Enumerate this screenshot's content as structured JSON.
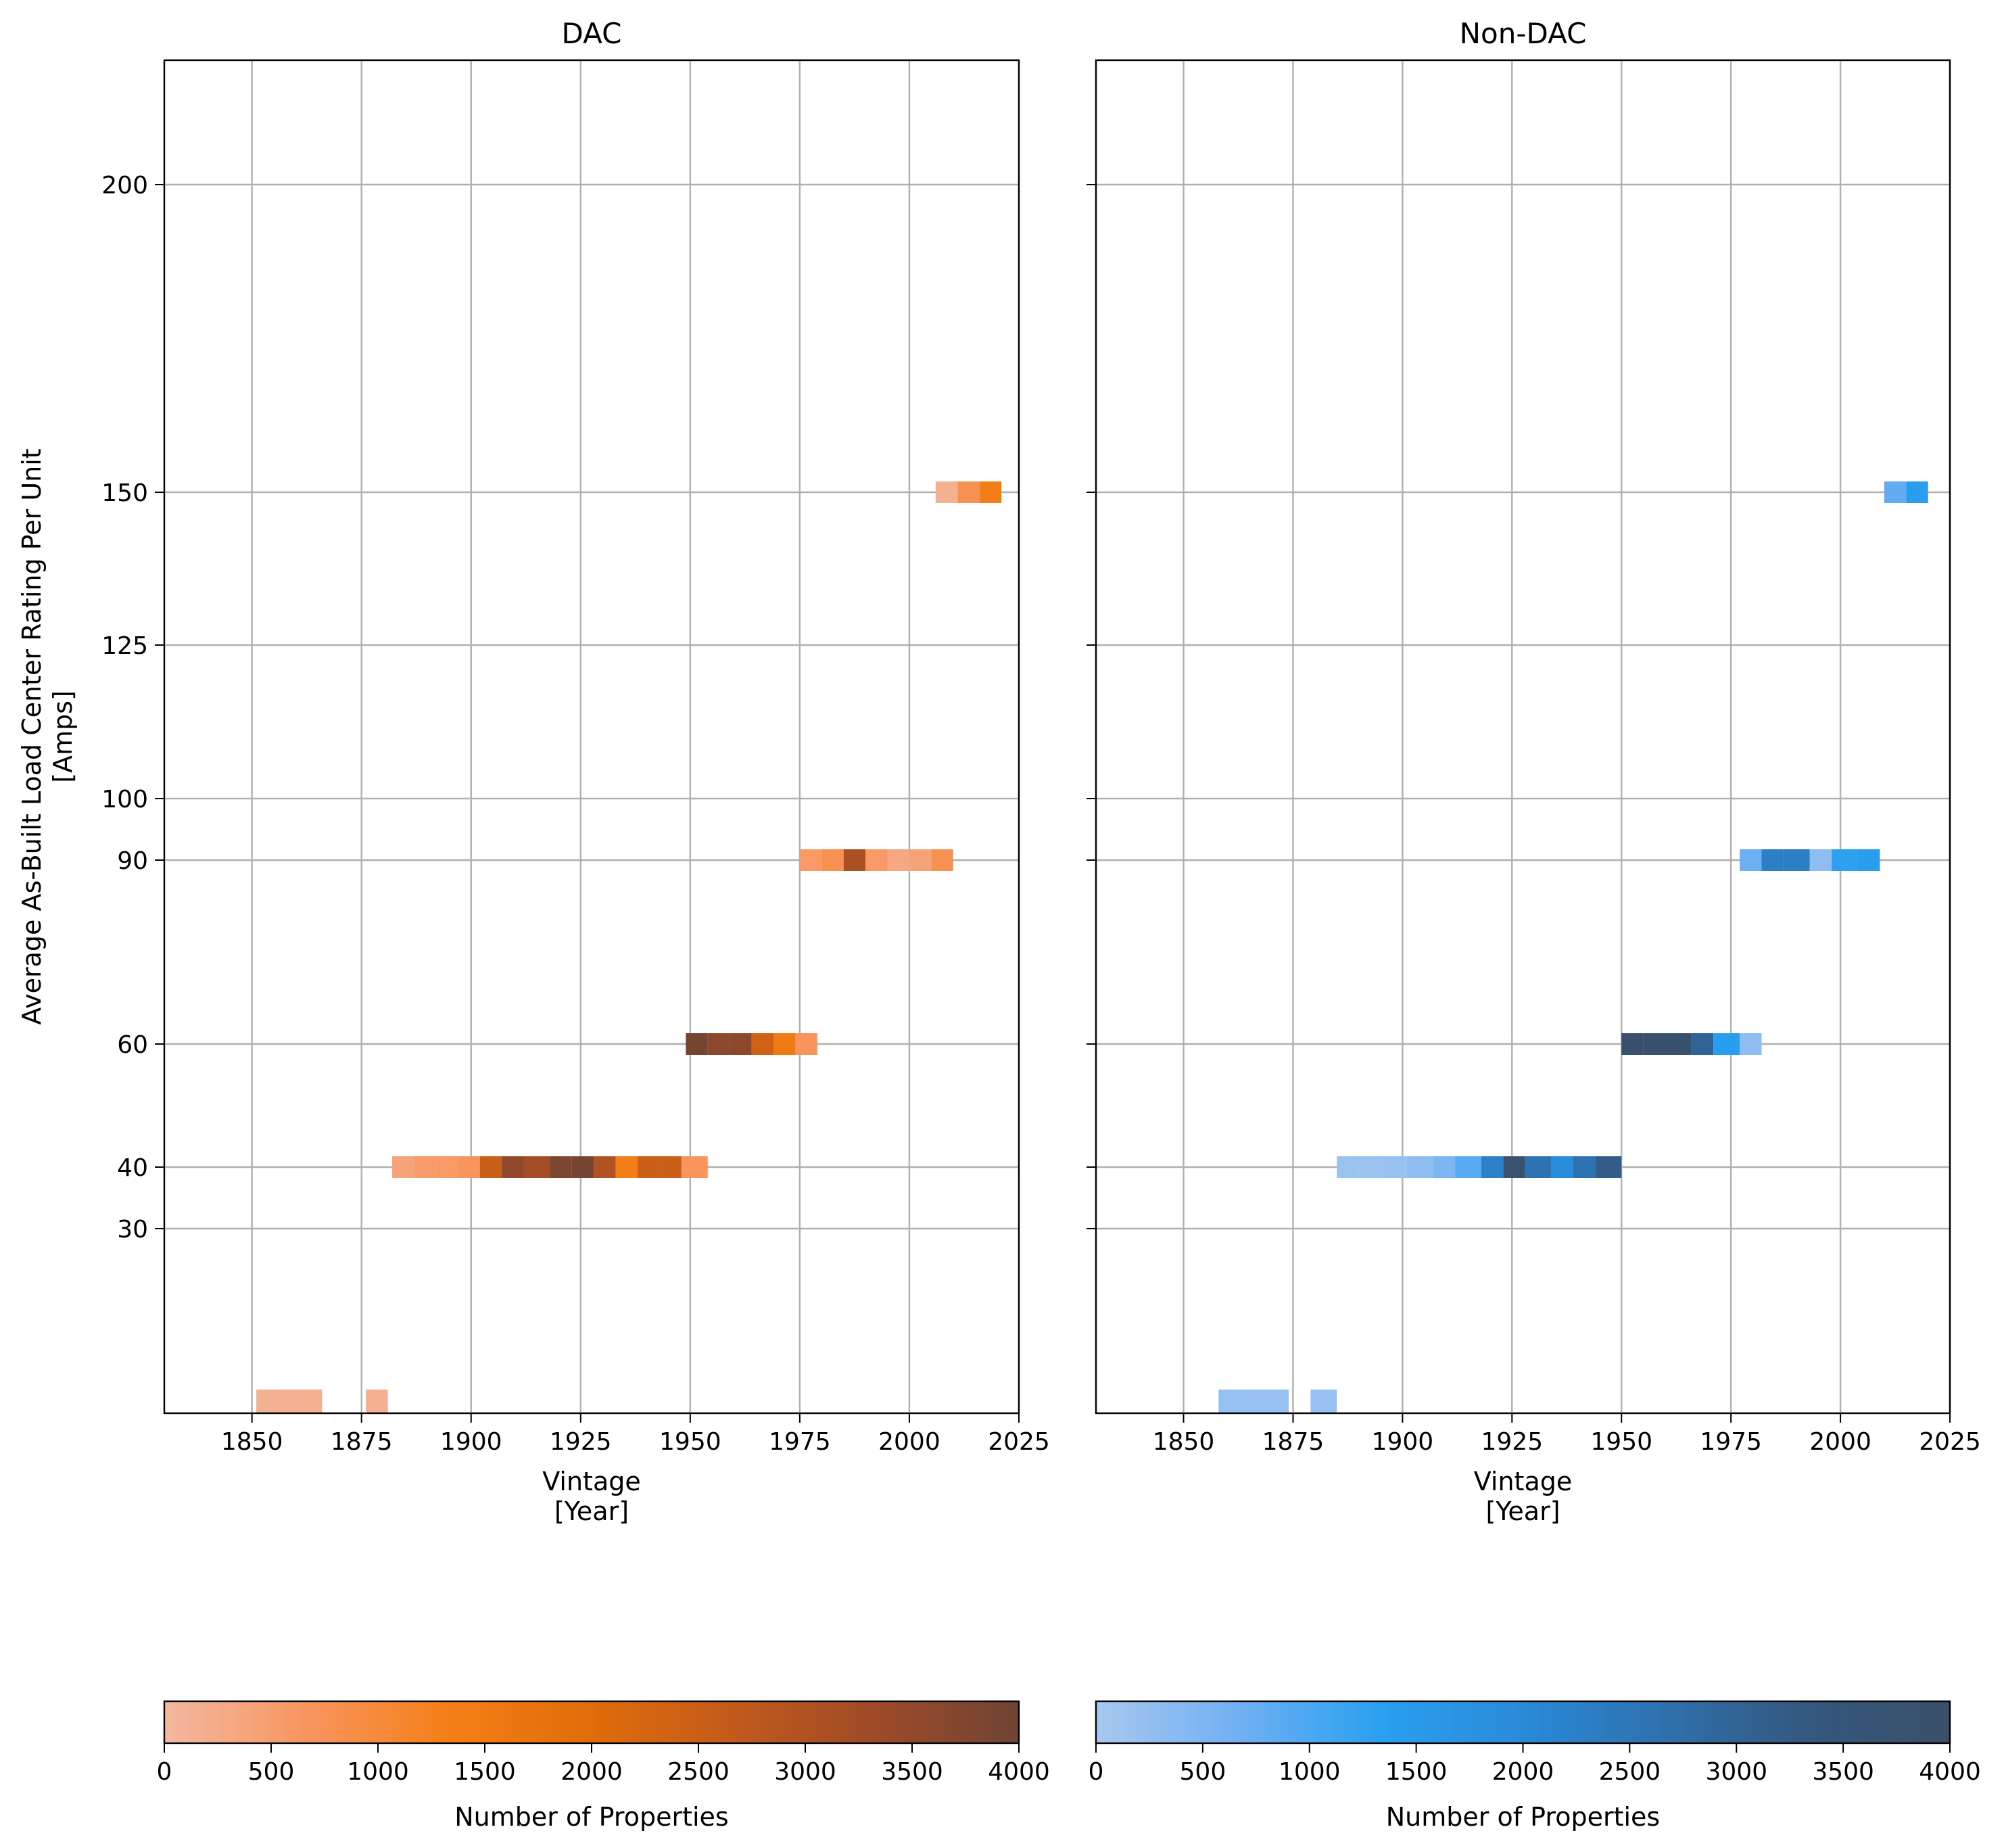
{
  "chart_data": {
    "type": "heatmap",
    "ylabel": "Average As-Built Load Center Rating Per Unit\n[Amps]",
    "yticks": [
      30,
      40,
      60,
      90,
      100,
      125,
      150,
      200
    ],
    "ylim": [
      10,
      220
    ],
    "xlim": [
      1830,
      2025
    ],
    "xticks": [
      1850,
      1875,
      1900,
      1925,
      1950,
      1975,
      2000,
      2025
    ],
    "panels": [
      {
        "title": "DAC",
        "xlabel": "Vintage\n[Year]",
        "colorbar": {
          "label": "Number of Properties",
          "range": [
            0,
            4000
          ],
          "ticks": [
            0,
            500,
            1000,
            1500,
            2000,
            2500,
            3000,
            3500,
            4000
          ],
          "colors": [
            "#f3b9a0",
            "#f89560",
            "#f57f17",
            "#e06c0a",
            "#c25a1c",
            "#9e4a28",
            "#6f4434"
          ]
        },
        "cells": [
          {
            "x0": 1851,
            "x1": 1866,
            "amps": 10,
            "count": 150
          },
          {
            "x0": 1876,
            "x1": 1881,
            "amps": 10,
            "count": 150
          },
          {
            "x0": 1882,
            "x1": 1887,
            "amps": 40,
            "count": 400
          },
          {
            "x0": 1887,
            "x1": 1892,
            "amps": 40,
            "count": 550
          },
          {
            "x0": 1892,
            "x1": 1897,
            "amps": 40,
            "count": 600
          },
          {
            "x0": 1897,
            "x1": 1902,
            "amps": 40,
            "count": 700
          },
          {
            "x0": 1902,
            "x1": 1907,
            "amps": 40,
            "count": 2500
          },
          {
            "x0": 1907,
            "x1": 1912,
            "amps": 40,
            "count": 3500
          },
          {
            "x0": 1912,
            "x1": 1918,
            "amps": 40,
            "count": 3200
          },
          {
            "x0": 1918,
            "x1": 1923,
            "amps": 40,
            "count": 3800
          },
          {
            "x0": 1923,
            "x1": 1928,
            "amps": 40,
            "count": 3900
          },
          {
            "x0": 1928,
            "x1": 1933,
            "amps": 40,
            "count": 3000
          },
          {
            "x0": 1933,
            "x1": 1938,
            "amps": 40,
            "count": 1400
          },
          {
            "x0": 1938,
            "x1": 1943,
            "amps": 40,
            "count": 2500
          },
          {
            "x0": 1943,
            "x1": 1948,
            "amps": 40,
            "count": 2500
          },
          {
            "x0": 1948,
            "x1": 1954,
            "amps": 40,
            "count": 700
          },
          {
            "x0": 1949,
            "x1": 1954,
            "amps": 60,
            "count": 3900
          },
          {
            "x0": 1954,
            "x1": 1959,
            "amps": 60,
            "count": 3600
          },
          {
            "x0": 1959,
            "x1": 1964,
            "amps": 60,
            "count": 3600
          },
          {
            "x0": 1964,
            "x1": 1969,
            "amps": 60,
            "count": 2400
          },
          {
            "x0": 1969,
            "x1": 1974,
            "amps": 60,
            "count": 1500
          },
          {
            "x0": 1974,
            "x1": 1979,
            "amps": 60,
            "count": 700
          },
          {
            "x0": 1975,
            "x1": 1980,
            "amps": 90,
            "count": 600
          },
          {
            "x0": 1980,
            "x1": 1985,
            "amps": 90,
            "count": 800
          },
          {
            "x0": 1985,
            "x1": 1990,
            "amps": 90,
            "count": 3100
          },
          {
            "x0": 1990,
            "x1": 1995,
            "amps": 90,
            "count": 600
          },
          {
            "x0": 1995,
            "x1": 2000,
            "amps": 90,
            "count": 300
          },
          {
            "x0": 2000,
            "x1": 2005,
            "amps": 90,
            "count": 400
          },
          {
            "x0": 2005,
            "x1": 2010,
            "amps": 90,
            "count": 800
          },
          {
            "x0": 2006,
            "x1": 2011,
            "amps": 150,
            "count": 150
          },
          {
            "x0": 2011,
            "x1": 2016,
            "amps": 150,
            "count": 800
          },
          {
            "x0": 2016,
            "x1": 2021,
            "amps": 150,
            "count": 1400
          }
        ]
      },
      {
        "title": "Non-DAC",
        "xlabel": "Vintage\n[Year]",
        "colorbar": {
          "label": "Number of Properties",
          "range": [
            0,
            4000
          ],
          "ticks": [
            0,
            500,
            1000,
            1500,
            2000,
            2500,
            3000,
            3500,
            4000
          ],
          "colors": [
            "#a8c8ef",
            "#70b0f3",
            "#2aa0f0",
            "#2a8ad8",
            "#2e70ad",
            "#34587f",
            "#3a4f69"
          ]
        },
        "cells": [
          {
            "x0": 1858,
            "x1": 1874,
            "amps": 10,
            "count": 200
          },
          {
            "x0": 1879,
            "x1": 1885,
            "amps": 10,
            "count": 200
          },
          {
            "x0": 1885,
            "x1": 1890,
            "amps": 40,
            "count": 150
          },
          {
            "x0": 1890,
            "x1": 1896,
            "amps": 40,
            "count": 150
          },
          {
            "x0": 1896,
            "x1": 1901,
            "amps": 40,
            "count": 200
          },
          {
            "x0": 1901,
            "x1": 1907,
            "amps": 40,
            "count": 300
          },
          {
            "x0": 1907,
            "x1": 1912,
            "amps": 40,
            "count": 500
          },
          {
            "x0": 1912,
            "x1": 1918,
            "amps": 40,
            "count": 900
          },
          {
            "x0": 1918,
            "x1": 1923,
            "amps": 40,
            "count": 2200
          },
          {
            "x0": 1923,
            "x1": 1928,
            "amps": 40,
            "count": 3800
          },
          {
            "x0": 1928,
            "x1": 1934,
            "amps": 40,
            "count": 2600
          },
          {
            "x0": 1934,
            "x1": 1939,
            "amps": 40,
            "count": 1900
          },
          {
            "x0": 1939,
            "x1": 1944,
            "amps": 40,
            "count": 2600
          },
          {
            "x0": 1944,
            "x1": 1950,
            "amps": 40,
            "count": 3200
          },
          {
            "x0": 1950,
            "x1": 1955,
            "amps": 60,
            "count": 3900
          },
          {
            "x0": 1955,
            "x1": 1961,
            "amps": 60,
            "count": 3900
          },
          {
            "x0": 1961,
            "x1": 1966,
            "amps": 60,
            "count": 3900
          },
          {
            "x0": 1966,
            "x1": 1971,
            "amps": 60,
            "count": 3000
          },
          {
            "x0": 1971,
            "x1": 1977,
            "amps": 60,
            "count": 1400
          },
          {
            "x0": 1977,
            "x1": 1982,
            "amps": 60,
            "count": 300
          },
          {
            "x0": 1977,
            "x1": 1982,
            "amps": 90,
            "count": 700
          },
          {
            "x0": 1982,
            "x1": 1987,
            "amps": 90,
            "count": 2300
          },
          {
            "x0": 1987,
            "x1": 1993,
            "amps": 90,
            "count": 2300
          },
          {
            "x0": 1993,
            "x1": 1998,
            "amps": 90,
            "count": 300
          },
          {
            "x0": 1998,
            "x1": 2004,
            "amps": 90,
            "count": 1300
          },
          {
            "x0": 2004,
            "x1": 2009,
            "amps": 90,
            "count": 1400
          },
          {
            "x0": 2010,
            "x1": 2015,
            "amps": 150,
            "count": 800
          },
          {
            "x0": 2015,
            "x1": 2020,
            "amps": 150,
            "count": 1400
          }
        ]
      }
    ]
  }
}
